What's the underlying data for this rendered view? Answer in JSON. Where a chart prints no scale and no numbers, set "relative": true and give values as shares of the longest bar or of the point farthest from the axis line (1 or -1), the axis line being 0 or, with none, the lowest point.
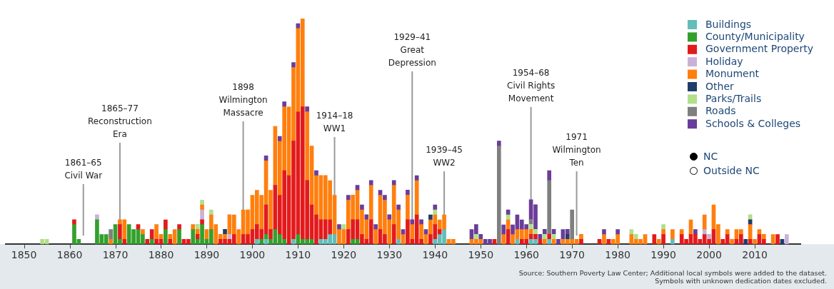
{
  "chart_data": {
    "type": "bar",
    "stacked": true,
    "relative": true,
    "legend": "top right",
    "xlim": [
      1846,
      2020
    ],
    "xticks": [
      1850,
      1860,
      1870,
      1880,
      1890,
      1900,
      1910,
      1920,
      1930,
      1940,
      1950,
      1960,
      1970,
      1980,
      1990,
      2000,
      2010
    ],
    "x": [
      1854,
      1855,
      1861,
      1862,
      1866,
      1867,
      1868,
      1869,
      1870,
      1871,
      1872,
      1873,
      1874,
      1875,
      1876,
      1877,
      1878,
      1879,
      1880,
      1881,
      1882,
      1883,
      1884,
      1885,
      1886,
      1887,
      1888,
      1889,
      1890,
      1891,
      1892,
      1893,
      1894,
      1895,
      1896,
      1897,
      1898,
      1899,
      1900,
      1901,
      1902,
      1903,
      1904,
      1905,
      1906,
      1907,
      1908,
      1909,
      1910,
      1911,
      1912,
      1913,
      1914,
      1915,
      1916,
      1917,
      1918,
      1919,
      1920,
      1921,
      1922,
      1923,
      1924,
      1925,
      1926,
      1927,
      1928,
      1929,
      1930,
      1931,
      1932,
      1933,
      1934,
      1935,
      1936,
      1937,
      1938,
      1939,
      1940,
      1941,
      1942,
      1943,
      1944,
      1948,
      1949,
      1950,
      1951,
      1952,
      1953,
      1954,
      1955,
      1956,
      1957,
      1958,
      1959,
      1960,
      1961,
      1962,
      1963,
      1964,
      1965,
      1966,
      1967,
      1968,
      1969,
      1970,
      1971,
      1972,
      1976,
      1977,
      1978,
      1979,
      1980,
      1983,
      1984,
      1985,
      1986,
      1988,
      1989,
      1990,
      1992,
      1994,
      1995,
      1996,
      1997,
      1998,
      1999,
      2000,
      2001,
      2002,
      2003,
      2004,
      2005,
      2006,
      2007,
      2008,
      2009,
      2010,
      2011,
      2012,
      2014,
      2015,
      2016,
      2017
    ],
    "series": [
      {
        "name": "Buildings",
        "color": "#63bdb9",
        "values": [
          null,
          null,
          null,
          null,
          null,
          null,
          null,
          null,
          null,
          null,
          null,
          null,
          null,
          null,
          null,
          null,
          null,
          null,
          null,
          null,
          null,
          null,
          null,
          null,
          null,
          null,
          null,
          null,
          null,
          null,
          null,
          null,
          null,
          null,
          null,
          null,
          null,
          null,
          null,
          0.022,
          null,
          0.022,
          null,
          null,
          null,
          null,
          null,
          0.022,
          null,
          null,
          null,
          null,
          null,
          0.022,
          0.022,
          0.043,
          0.043,
          null,
          null,
          null,
          null,
          null,
          null,
          null,
          null,
          null,
          null,
          null,
          null,
          null,
          0.022,
          null,
          null,
          null,
          null,
          null,
          null,
          null,
          0.022,
          0.043,
          0.065,
          null,
          null,
          null,
          null,
          null,
          null,
          null,
          null,
          null,
          null,
          null,
          null,
          0.022,
          null,
          null,
          0.022,
          0.022,
          null,
          null,
          0.022,
          null,
          null,
          null,
          null,
          null,
          null,
          null,
          null,
          null,
          null,
          null,
          null,
          null,
          null,
          null,
          null,
          null,
          null,
          null,
          0.022,
          null,
          null,
          null,
          null,
          null,
          null,
          null,
          null,
          null,
          null,
          null,
          null,
          null,
          null,
          null,
          null,
          null,
          null,
          null,
          null,
          null,
          null,
          null
        ]
      },
      {
        "name": "County/Municipality",
        "color": "#33a02c",
        "values": [
          null,
          null,
          0.087,
          0.022,
          0.109,
          0.043,
          0.043,
          null,
          0.087,
          0.022,
          null,
          0.087,
          0.065,
          0.065,
          0.043,
          null,
          0.022,
          null,
          null,
          0.065,
          null,
          null,
          0.065,
          null,
          null,
          0.065,
          0.022,
          0.087,
          0.022,
          0.065,
          null,
          null,
          null,
          null,
          null,
          null,
          null,
          null,
          null,
          null,
          0.022,
          0.022,
          0.022,
          0.065,
          0.043,
          0.022,
          null,
          null,
          0.043,
          0.022,
          0.022,
          0.022,
          null,
          null,
          null,
          null,
          null,
          null,
          null,
          null,
          0.022,
          0.022,
          null,
          null,
          null,
          null,
          null,
          null,
          null,
          null,
          null,
          null,
          null,
          null,
          null,
          null,
          null,
          null,
          null,
          null,
          null,
          null,
          null,
          null,
          null,
          null,
          null,
          null,
          null,
          null,
          null,
          null,
          null,
          null,
          null,
          null,
          null,
          null,
          null,
          null,
          null,
          null,
          null,
          null,
          null,
          null,
          null,
          null,
          null,
          null,
          null,
          null,
          null,
          null,
          null,
          null,
          null,
          null,
          null,
          null,
          null,
          null,
          null,
          null,
          null,
          null,
          null,
          null,
          null,
          null,
          null,
          null,
          null,
          null,
          null,
          null,
          null,
          null,
          null,
          null,
          null,
          null,
          null,
          null
        ]
      },
      {
        "name": "Government Property",
        "color": "#e31a1c",
        "values": [
          null,
          null,
          0.022,
          null,
          null,
          null,
          null,
          null,
          null,
          0.065,
          0.022,
          null,
          null,
          0.022,
          null,
          0.022,
          0.043,
          0.022,
          0.022,
          0.043,
          0.022,
          null,
          0.022,
          0.022,
          0.022,
          null,
          0.022,
          0.022,
          null,
          null,
          null,
          0.022,
          0.022,
          0.022,
          0.043,
          null,
          0.043,
          0.043,
          0.065,
          0.065,
          0.043,
          0.13,
          0.043,
          0.196,
          0.174,
          0.304,
          0.304,
          0.435,
          0.543,
          0.587,
          0.261,
          0.152,
          0.13,
          0.087,
          0.087,
          0.065,
          null,
          null,
          null,
          0.065,
          0.087,
          0.087,
          0.043,
          0.022,
          0.109,
          null,
          0.065,
          0.043,
          null,
          0.087,
          null,
          null,
          0.109,
          0.022,
          0.13,
          0.022,
          null,
          0.043,
          0.065,
          0.022,
          null,
          null,
          null,
          null,
          null,
          null,
          null,
          null,
          0.022,
          null,
          null,
          0.065,
          null,
          null,
          0.022,
          0.022,
          0.022,
          0.022,
          0.022,
          null,
          0.022,
          null,
          null,
          null,
          null,
          null,
          null,
          0.022,
          0.022,
          null,
          0.022,
          null,
          null,
          null,
          null,
          null,
          null,
          0.043,
          null,
          0.043,
          null,
          0.043,
          0.022,
          0.043,
          0.043,
          0.022,
          0.043,
          0.022,
          0.065,
          null,
          0.022,
          0.043,
          null,
          0.022,
          0.043,
          null,
          0.022,
          null,
          0.043,
          0.022,
          null,
          0.043,
          null,
          null
        ]
      },
      {
        "name": "Holiday",
        "color": "#cab2d6",
        "values": [
          null,
          null,
          null,
          null,
          0.022,
          null,
          null,
          null,
          null,
          null,
          null,
          null,
          null,
          null,
          null,
          null,
          null,
          null,
          null,
          null,
          null,
          null,
          null,
          null,
          null,
          null,
          null,
          0.043,
          null,
          null,
          null,
          null,
          null,
          0.022,
          null,
          null,
          null,
          null,
          null,
          null,
          null,
          null,
          null,
          null,
          null,
          null,
          null,
          null,
          null,
          null,
          null,
          null,
          null,
          null,
          null,
          null,
          null,
          null,
          null,
          null,
          null,
          null,
          null,
          null,
          null,
          null,
          null,
          null,
          null,
          null,
          null,
          null,
          null,
          null,
          null,
          null,
          null,
          null,
          null,
          null,
          null,
          null,
          null,
          null,
          null,
          null,
          null,
          null,
          null,
          null,
          null,
          null,
          null,
          null,
          null,
          null,
          null,
          null,
          null,
          null,
          null,
          null,
          null,
          null,
          null,
          null,
          null,
          null,
          null,
          null,
          null,
          null,
          null,
          null,
          null,
          null,
          null,
          null,
          null,
          null,
          null,
          null,
          null,
          null,
          null,
          null,
          0.022,
          0.022,
          null,
          null,
          null,
          null,
          null,
          null,
          null,
          null,
          null,
          null,
          null,
          null,
          null,
          null,
          null,
          0.043
        ]
      },
      {
        "name": "Monument",
        "color": "#ff7f0e",
        "values": [
          null,
          null,
          null,
          null,
          null,
          null,
          null,
          0.022,
          null,
          0.022,
          0.087,
          null,
          null,
          null,
          0.022,
          null,
          null,
          0.065,
          0.022,
          null,
          0.022,
          0.065,
          null,
          null,
          null,
          0.022,
          0.022,
          0.022,
          0.043,
          0.065,
          0.087,
          0.022,
          0.022,
          0.087,
          0.087,
          0.065,
          0.109,
          0.109,
          0.152,
          0.152,
          0.152,
          0.196,
          0.174,
          0.261,
          0.239,
          0.283,
          0.304,
          0.326,
          0.37,
          0.391,
          0.304,
          0.261,
          0.174,
          0.196,
          0.196,
          0.174,
          0.174,
          0.065,
          0.065,
          0.13,
          0.109,
          0.13,
          0.109,
          0.087,
          0.152,
          0.065,
          0.152,
          0.152,
          0.109,
          0.174,
          0.13,
          0.043,
          0.109,
          0.065,
          0.152,
          0.065,
          0.043,
          0.065,
          0.043,
          0.043,
          0.065,
          0.022,
          0.022,
          0.022,
          0.022,
          0.022,
          null,
          null,
          null,
          null,
          0.043,
          0.043,
          0.043,
          0.043,
          0.043,
          0.043,
          0.022,
          null,
          null,
          0.022,
          null,
          0.022,
          null,
          0.022,
          0.022,
          0.022,
          0.022,
          0.022,
          null,
          0.043,
          null,
          0.022,
          0.043,
          0.043,
          0.022,
          0.022,
          0.043,
          null,
          0.022,
          0.022,
          0.043,
          0.022,
          null,
          0.065,
          null,
          null,
          0.065,
          null,
          0.109,
          0.087,
          null,
          0.022,
          0.022,
          0.043,
          0.022,
          null,
          0.065,
          0.022,
          0.022,
          0.022,
          0.043,
          null,
          null,
          null
        ]
      },
      {
        "name": "Other",
        "color": "#1f3d6b",
        "values": [
          null,
          null,
          null,
          null,
          null,
          null,
          null,
          null,
          null,
          null,
          null,
          null,
          null,
          null,
          null,
          null,
          null,
          null,
          null,
          null,
          null,
          null,
          null,
          null,
          null,
          null,
          null,
          null,
          null,
          null,
          null,
          null,
          0.022,
          null,
          null,
          null,
          null,
          null,
          null,
          null,
          null,
          null,
          null,
          null,
          null,
          null,
          null,
          null,
          null,
          null,
          null,
          null,
          null,
          null,
          null,
          null,
          null,
          null,
          null,
          null,
          null,
          null,
          null,
          null,
          null,
          null,
          null,
          null,
          null,
          null,
          null,
          null,
          null,
          null,
          null,
          null,
          null,
          0.022,
          null,
          null,
          null,
          null,
          null,
          null,
          null,
          null,
          null,
          null,
          null,
          null,
          null,
          null,
          null,
          null,
          null,
          null,
          null,
          null,
          null,
          null,
          null,
          null,
          null,
          null,
          0.022,
          null,
          null,
          null,
          null,
          null,
          null,
          null,
          null,
          null,
          null,
          null,
          null,
          null,
          null,
          null,
          null,
          null,
          null,
          null,
          null,
          null,
          null,
          null,
          null,
          null,
          null,
          null,
          null,
          null,
          null,
          0.022,
          0.022,
          null,
          null,
          null,
          null,
          null,
          0.022,
          null
        ]
      },
      {
        "name": "Parks/Trails",
        "color": "#b2df8a",
        "values": [
          0.022,
          0.022,
          null,
          null,
          null,
          null,
          null,
          null,
          null,
          null,
          null,
          null,
          null,
          null,
          null,
          null,
          null,
          null,
          null,
          null,
          null,
          null,
          null,
          null,
          null,
          null,
          0.022,
          0.022,
          null,
          0.022,
          null,
          null,
          null,
          null,
          null,
          null,
          null,
          null,
          null,
          null,
          null,
          null,
          null,
          null,
          null,
          null,
          null,
          null,
          null,
          null,
          null,
          null,
          null,
          null,
          null,
          null,
          null,
          null,
          0.022,
          null,
          null,
          null,
          null,
          null,
          null,
          null,
          null,
          null,
          null,
          null,
          null,
          null,
          null,
          null,
          null,
          null,
          null,
          null,
          0.022,
          null,
          null,
          null,
          null,
          null,
          0.022,
          null,
          null,
          null,
          null,
          null,
          null,
          0.022,
          null,
          null,
          null,
          null,
          0.022,
          0.022,
          null,
          0.022,
          null,
          0.022,
          null,
          null,
          null,
          null,
          null,
          null,
          null,
          null,
          null,
          null,
          null,
          0.022,
          0.022,
          null,
          null,
          null,
          null,
          0.022,
          null,
          null,
          null,
          null,
          null,
          null,
          null,
          null,
          null,
          null,
          null,
          null,
          null,
          null,
          null,
          null,
          0.022,
          null,
          null,
          null,
          null,
          null,
          null,
          null
        ]
      },
      {
        "name": "Roads",
        "color": "#7f7f7f",
        "values": [
          null,
          null,
          null,
          null,
          null,
          null,
          null,
          0.043,
          null,
          null,
          null,
          null,
          null,
          null,
          null,
          null,
          null,
          null,
          null,
          null,
          null,
          null,
          null,
          null,
          null,
          null,
          null,
          null,
          null,
          null,
          null,
          null,
          null,
          null,
          null,
          null,
          null,
          null,
          null,
          null,
          null,
          null,
          null,
          null,
          null,
          null,
          null,
          null,
          null,
          null,
          null,
          null,
          null,
          null,
          null,
          null,
          null,
          null,
          null,
          null,
          null,
          null,
          null,
          null,
          null,
          null,
          null,
          null,
          null,
          null,
          null,
          null,
          null,
          null,
          null,
          null,
          null,
          null,
          null,
          null,
          null,
          null,
          null,
          null,
          null,
          null,
          null,
          null,
          null,
          0.435,
          null,
          null,
          null,
          null,
          null,
          null,
          0.022,
          null,
          null,
          null,
          0.239,
          null,
          null,
          null,
          null,
          0.13,
          null,
          null,
          null,
          null,
          null,
          null,
          null,
          null,
          null,
          null,
          null,
          null,
          null,
          null,
          null,
          null,
          null,
          null,
          null,
          null,
          null,
          null,
          null,
          null,
          null,
          null,
          null,
          null,
          null,
          null,
          null,
          null,
          null,
          null,
          null,
          null,
          null,
          null
        ]
      },
      {
        "name": "Schools & Colleges",
        "color": "#6a3d9a",
        "values": [
          null,
          null,
          null,
          null,
          null,
          null,
          null,
          null,
          null,
          null,
          null,
          null,
          null,
          null,
          null,
          null,
          null,
          null,
          null,
          null,
          null,
          null,
          null,
          null,
          null,
          null,
          null,
          null,
          null,
          null,
          null,
          null,
          null,
          null,
          null,
          null,
          null,
          null,
          null,
          null,
          null,
          0.022,
          null,
          null,
          0.022,
          0.022,
          null,
          0.022,
          0.022,
          null,
          0.022,
          null,
          0.022,
          null,
          null,
          null,
          null,
          0.022,
          null,
          0.022,
          null,
          0.022,
          0.022,
          0.022,
          0.022,
          0.022,
          0.022,
          0.022,
          0.022,
          0.022,
          0.022,
          0.022,
          0.022,
          0.022,
          0.022,
          0.022,
          0.022,
          null,
          0.022,
          null,
          null,
          null,
          null,
          0.043,
          0.043,
          0.022,
          0.022,
          0.022,
          null,
          0.022,
          0.043,
          0.022,
          0.043,
          0.065,
          0.043,
          0.022,
          0.087,
          0.109,
          0.022,
          0.022,
          0.043,
          0.022,
          0.022,
          0.043,
          0.022,
          null,
          null,
          null,
          null,
          0.022,
          null,
          null,
          0.022,
          null,
          null,
          null,
          null,
          null,
          null,
          null,
          null,
          null,
          null,
          null,
          0.022,
          null,
          null,
          null,
          null,
          null,
          null,
          null,
          null,
          null,
          null,
          null,
          null,
          null,
          null,
          null,
          null,
          null,
          null,
          null
        ]
      }
    ],
    "ref_lines": [
      {
        "axis": "x",
        "value": 1863,
        "label": "1861–65\nCivil War"
      },
      {
        "axis": "x",
        "value": 1871,
        "label": "1865–77\nReconstruction\nEra"
      },
      {
        "axis": "x",
        "value": 1898,
        "label": "1898\nWilmington\nMassacre"
      },
      {
        "axis": "x",
        "value": 1918,
        "label": "1914–18\nWW1"
      },
      {
        "axis": "x",
        "value": 1935,
        "label": "1929–41\nGreat\nDepression"
      },
      {
        "axis": "x",
        "value": 1942,
        "label": "1939–45\nWW2"
      },
      {
        "axis": "x",
        "value": 1961,
        "label": "1954–68\nCivil Rights\nMovement"
      },
      {
        "axis": "x",
        "value": 1971,
        "label": "1971\nWilmington\nTen"
      }
    ],
    "annotations": [
      "NC",
      "Outside NC",
      "Source: Southern Poverty Law Center; Additional local symbols were added to the dataset.",
      "Symbols with unknown dedication dates excluded."
    ]
  }
}
